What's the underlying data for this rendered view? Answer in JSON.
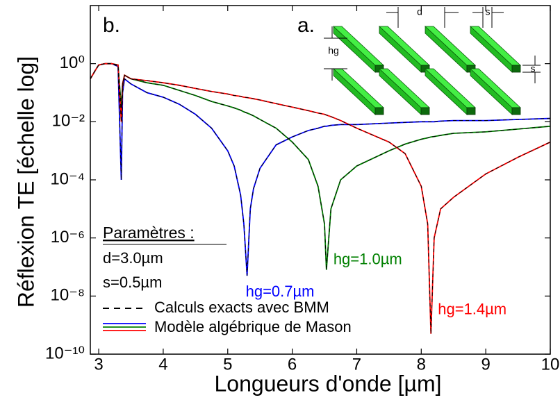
{
  "chart_data": {
    "type": "line",
    "log_y": true,
    "xlabel": "Longueurs d'onde [µm]",
    "ylabel": "Réflexion TE [échelle log]",
    "xlim": [
      2.87,
      10
    ],
    "ylim": [
      1e-10,
      100
    ],
    "xticks": [
      3,
      4,
      5,
      6,
      7,
      8,
      9,
      10
    ],
    "yticks": [
      {
        "value": 1e-10,
        "label": "10⁻¹⁰"
      },
      {
        "value": 1e-08,
        "label": "10⁻⁸"
      },
      {
        "value": 1e-06,
        "label": "10⁻⁶"
      },
      {
        "value": 0.0001,
        "label": "10⁻⁴"
      },
      {
        "value": 0.01,
        "label": "10⁻²"
      },
      {
        "value": 1,
        "label": "10⁰"
      }
    ],
    "x": [
      2.87,
      2.95,
      3.0,
      3.1,
      3.2,
      3.3,
      3.35,
      3.37,
      3.4,
      3.5,
      3.75,
      4,
      4.25,
      4.5,
      4.75,
      5,
      5.1,
      5.2,
      5.25,
      5.3,
      5.35,
      5.4,
      5.5,
      5.75,
      6,
      6.25,
      6.4,
      6.5,
      6.53,
      6.6,
      6.75,
      7,
      7.5,
      7.75,
      8,
      8.1,
      8.15,
      8.2,
      8.3,
      8.5,
      9,
      9.5,
      10
    ],
    "series": [
      {
        "name": "hg=0.7µm",
        "color": "#0000ff",
        "values": [
          0.3,
          0.6,
          0.9,
          1,
          1,
          0.8,
          0.0001,
          0.1,
          0.3,
          0.2,
          0.1,
          0.07,
          0.04,
          0.018,
          0.006,
          0.001,
          0.0003,
          3e-05,
          3e-06,
          5e-08,
          1e-05,
          5e-05,
          0.00025,
          0.0016,
          0.003,
          0.005,
          0.006,
          0.007,
          0.007,
          0.0075,
          0.008,
          0.008,
          0.009,
          0.0095,
          0.01,
          0.01,
          0.01,
          0.01,
          0.0105,
          0.011,
          0.011,
          0.012,
          0.013
        ]
      },
      {
        "name": "hg=1.0µm",
        "color": "#008000",
        "values": [
          0.3,
          0.6,
          0.9,
          1,
          1,
          0.9,
          0.03,
          0.2,
          0.4,
          0.3,
          0.22,
          0.18,
          0.12,
          0.08,
          0.05,
          0.035,
          0.03,
          0.025,
          0.022,
          0.02,
          0.018,
          0.016,
          0.012,
          0.006,
          0.002,
          0.0005,
          6e-05,
          3e-06,
          8e-08,
          1e-05,
          0.0001,
          0.0003,
          0.001,
          0.0017,
          0.0025,
          0.0028,
          0.003,
          0.0031,
          0.0034,
          0.004,
          0.0045,
          0.0056,
          0.007
        ]
      },
      {
        "name": "hg=1.4µm",
        "color": "#ff0000",
        "values": [
          0.3,
          0.6,
          0.9,
          1,
          1,
          0.9,
          0.01,
          0.2,
          0.4,
          0.3,
          0.26,
          0.22,
          0.18,
          0.14,
          0.11,
          0.09,
          0.08,
          0.075,
          0.07,
          0.068,
          0.065,
          0.062,
          0.056,
          0.042,
          0.032,
          0.024,
          0.02,
          0.018,
          0.017,
          0.015,
          0.011,
          0.006,
          0.002,
          0.0008,
          6e-05,
          3e-06,
          5e-10,
          1e-06,
          1e-05,
          2.5e-05,
          0.00016,
          0.0006,
          0.002
        ]
      }
    ],
    "legend": [
      "Calculs exacts avec BMM",
      "Modèle algébrique de Mason"
    ],
    "panel_labels": [
      "b.",
      "a."
    ],
    "parameters": {
      "title": "Paramètres :",
      "lines": [
        "d=3.0µm",
        "s=0.5µm"
      ]
    },
    "inset_labels": {
      "d": "d",
      "s_top": "s",
      "hg": "hg",
      "s_side": "s"
    }
  }
}
